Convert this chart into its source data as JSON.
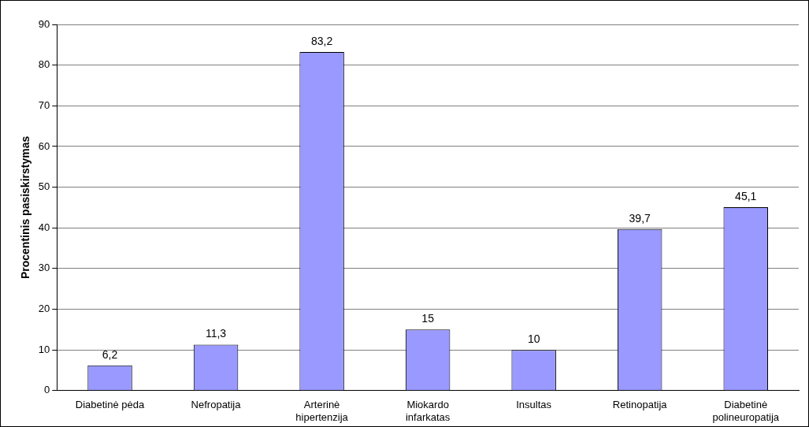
{
  "chart_data": {
    "type": "bar",
    "ylabel": "Procentinis pasiskirstymas",
    "categories": [
      "Diabetinė pėda",
      "Nefropatija",
      "Arterinė hipertenzija",
      "Miokardo infarkatas",
      "Insultas",
      "Retinopatija",
      "Diabetinė polineuropatija"
    ],
    "values": [
      6.2,
      11.3,
      83.2,
      15,
      10,
      39.7,
      45.1
    ],
    "value_labels": [
      "6,2",
      "11,3",
      "83,2",
      "15",
      "10",
      "39,7",
      "45,1"
    ],
    "color": "#9999ff",
    "ylim": [
      0,
      90
    ],
    "yticks": [
      0,
      10,
      20,
      30,
      40,
      50,
      60,
      70,
      80,
      90
    ],
    "grid": "y"
  }
}
